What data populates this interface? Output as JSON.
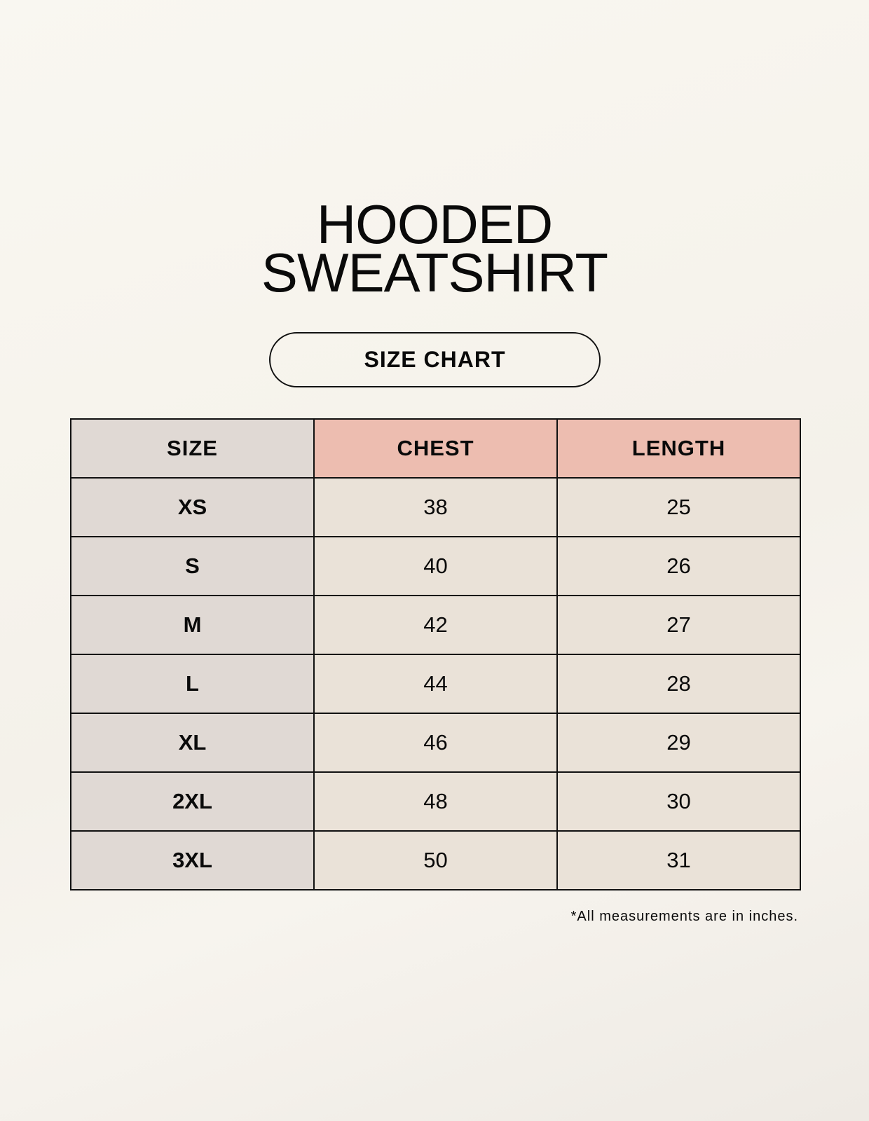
{
  "title": {
    "line1": "HOODED",
    "line2": "SWEATSHIRT"
  },
  "subtitle": "SIZE CHART",
  "colors": {
    "size_column": "#e0d9d4",
    "header_highlight": "#edbdb0",
    "value_cells": "#eae2d8",
    "border": "#111111"
  },
  "table": {
    "headers": [
      "SIZE",
      "CHEST",
      "LENGTH"
    ],
    "rows": [
      {
        "size": "XS",
        "chest": "38",
        "length": "25"
      },
      {
        "size": "S",
        "chest": "40",
        "length": "26"
      },
      {
        "size": "M",
        "chest": "42",
        "length": "27"
      },
      {
        "size": "L",
        "chest": "44",
        "length": "28"
      },
      {
        "size": "XL",
        "chest": "46",
        "length": "29"
      },
      {
        "size": "2XL",
        "chest": "48",
        "length": "30"
      },
      {
        "size": "3XL",
        "chest": "50",
        "length": "31"
      }
    ]
  },
  "footnote": "*All measurements are in inches."
}
